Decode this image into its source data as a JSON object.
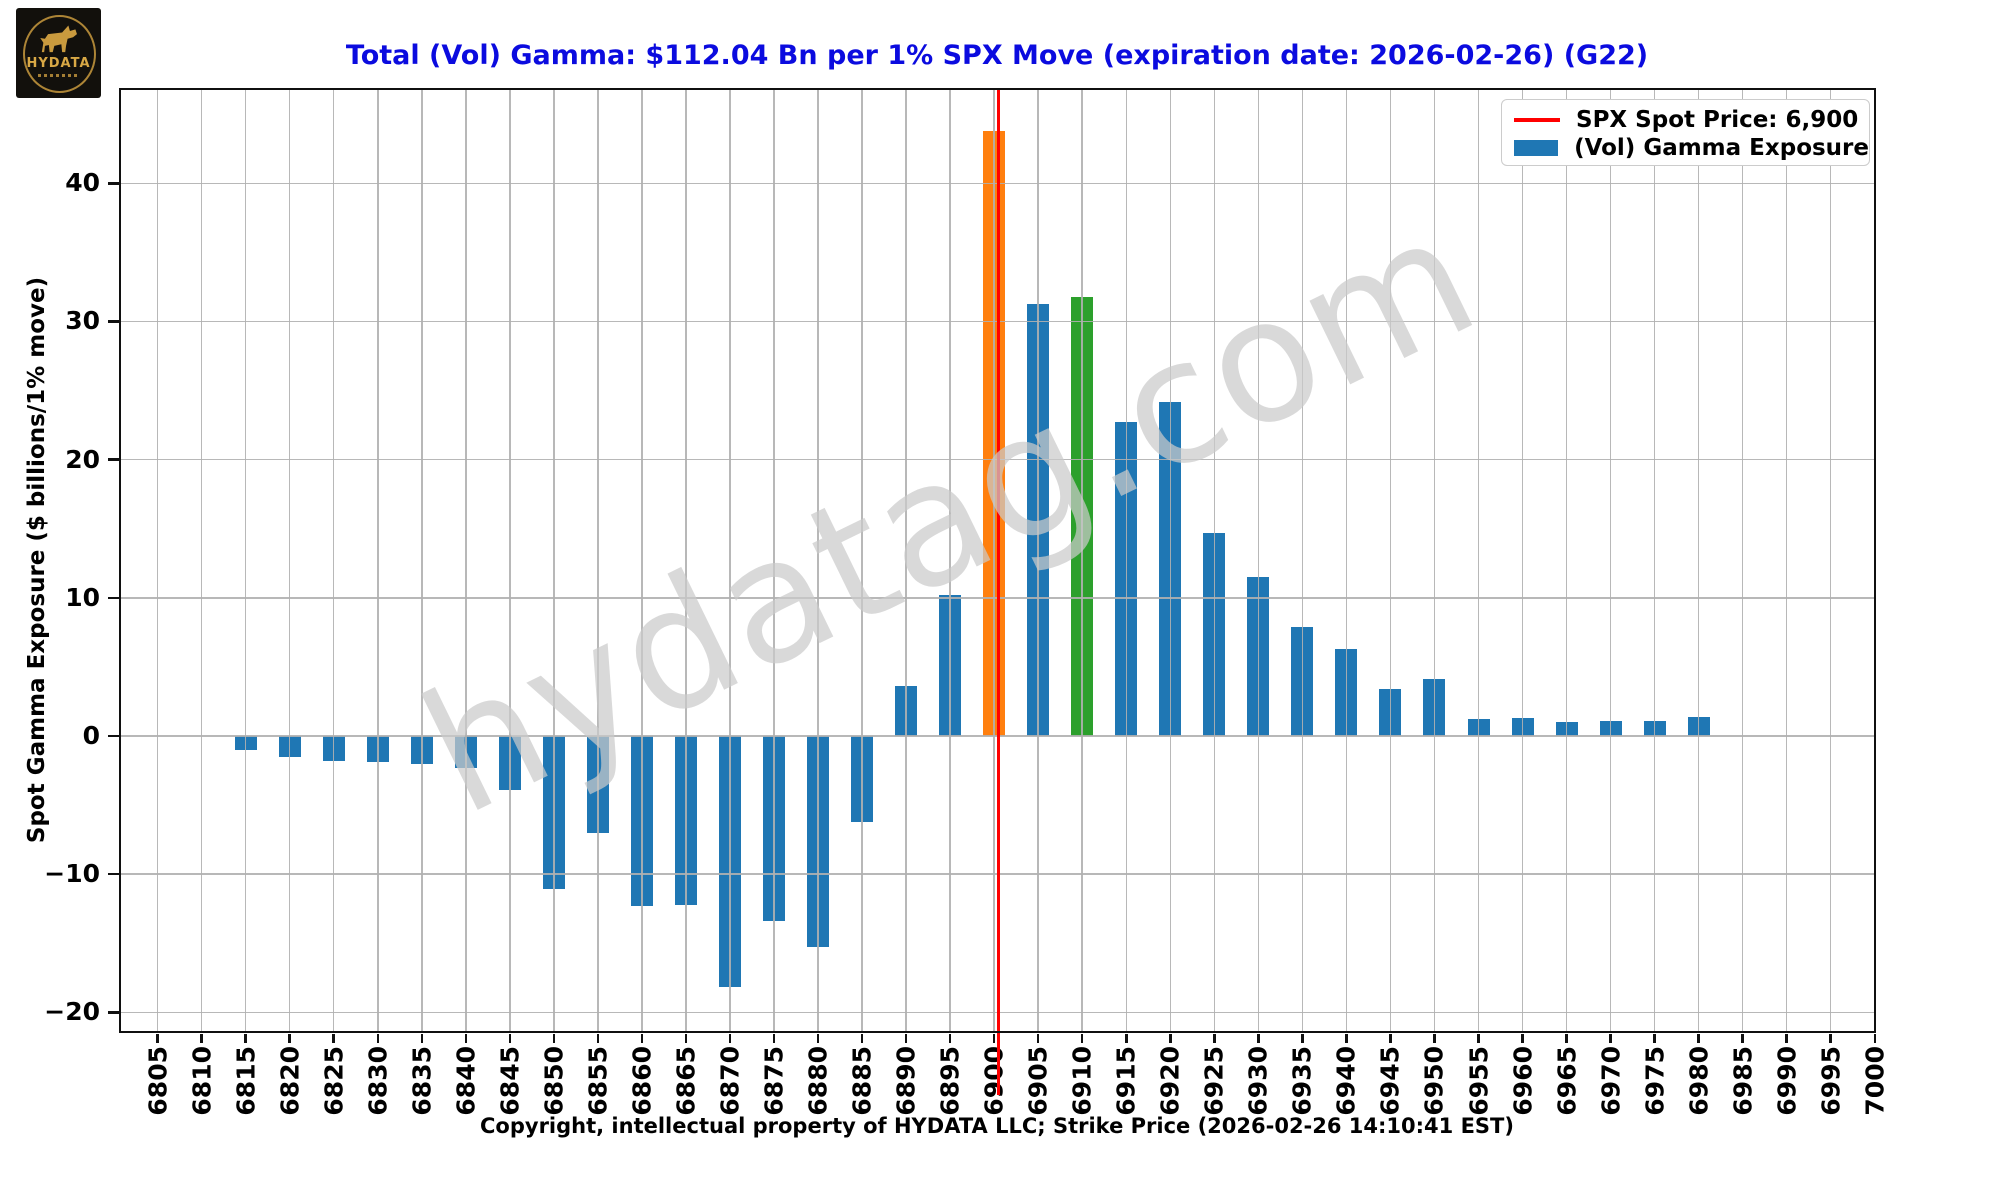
{
  "title": {
    "text": "Total (Vol) Gamma: $112.04 Bn per 1% SPX Move (expiration date: 2026-02-26) (G22)",
    "color": "#0b0bdf"
  },
  "logo": {
    "brand": "HYDATA",
    "background": "#12100c",
    "accent": "#c99a3e"
  },
  "legend": {
    "position": "upper right",
    "items": [
      {
        "label": "SPX Spot Price: 6,900",
        "swatch": "line",
        "color": "#ff0000"
      },
      {
        "label": "(Vol) Gamma Exposure",
        "swatch": "rect",
        "color": "#1f77b4"
      }
    ]
  },
  "watermark": {
    "text": "hydatag.com"
  },
  "caption": {
    "text": "Copyright, intellectual property of HYDATA LLC; Strike Price (2026-02-26 14:10:41 EST)"
  },
  "chart_data": {
    "type": "bar",
    "title": "Total (Vol) Gamma: $112.04 Bn per 1% SPX Move (expiration date: 2026-02-26) (G22)",
    "xlabel": "Copyright, intellectual property of HYDATA LLC; Strike Price (2026-02-26 14:10:41 EST)",
    "ylabel": "Spot Gamma Exposure ($ billions/1% move)",
    "ylim": [
      -21.5,
      46.9
    ],
    "yticks": [
      -20,
      -10,
      0,
      10,
      20,
      30,
      40
    ],
    "grid": true,
    "legend_position": "upper right",
    "categories": [
      6805,
      6810,
      6815,
      6820,
      6825,
      6830,
      6835,
      6840,
      6845,
      6850,
      6855,
      6860,
      6865,
      6870,
      6875,
      6880,
      6885,
      6890,
      6895,
      6900,
      6905,
      6910,
      6915,
      6920,
      6925,
      6930,
      6935,
      6940,
      6945,
      6950,
      6955,
      6960,
      6965,
      6970,
      6975,
      6980,
      6985,
      6990,
      6995,
      7000
    ],
    "series": [
      {
        "name": "(Vol) Gamma Exposure",
        "values": [
          0,
          0,
          -1.0,
          -1.5,
          -1.8,
          -1.9,
          -2.0,
          -2.3,
          -3.9,
          -11.1,
          -7.0,
          -12.3,
          -12.2,
          -18.2,
          -13.4,
          -15.3,
          -6.2,
          3.6,
          10.2,
          43.8,
          31.3,
          31.8,
          22.7,
          24.2,
          14.7,
          11.5,
          7.9,
          6.3,
          3.4,
          4.1,
          1.2,
          1.3,
          1.0,
          1.1,
          1.1,
          1.4,
          0,
          0,
          0,
          0
        ]
      }
    ],
    "bar_colors": {
      "default": "#1f77b4",
      "6900": "#ff7f0e",
      "6910": "#2ca02c"
    },
    "grid_color": "#b0b0b0",
    "spot_line": {
      "label": "SPX Spot Price: 6,900",
      "x": 6900,
      "color": "#ff0000"
    }
  }
}
